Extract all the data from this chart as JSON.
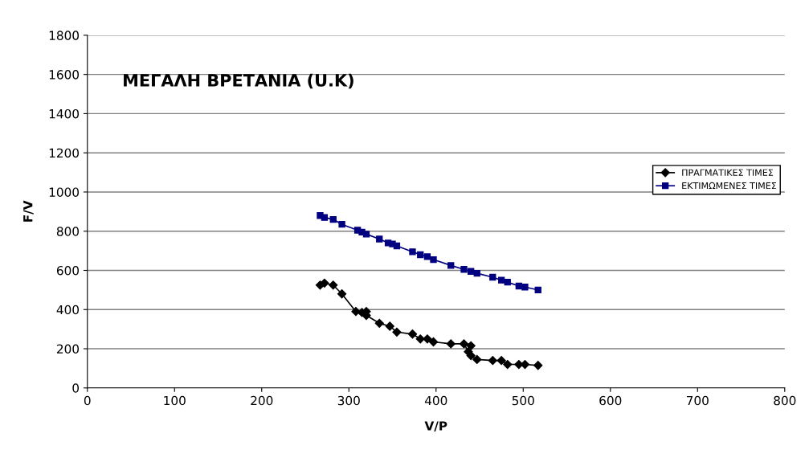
{
  "chart_data": {
    "type": "line",
    "title": "ΜΕΓΑΛΗ ΒΡΕΤΑΝΙΑ (U.K)",
    "xlabel": "V/P",
    "ylabel": "F/V",
    "xlim": [
      0,
      800
    ],
    "xticks": [
      0,
      100,
      200,
      300,
      400,
      500,
      600,
      700,
      800
    ],
    "ylim": [
      0,
      1800
    ],
    "yticks": [
      0,
      200,
      400,
      600,
      800,
      1000,
      1200,
      1400,
      1600,
      1800
    ],
    "grid": "y",
    "legend": "right",
    "series": [
      {
        "name": "ΠΡΑΓΜΑΤΙΚΕΣ ΤΙΜΕΣ",
        "color": "#000000",
        "marker": "diamond",
        "x": [
          267,
          272,
          282,
          292,
          308,
          315,
          320,
          320,
          335,
          347,
          355,
          373,
          382,
          390,
          397,
          417,
          432,
          437,
          440,
          440,
          447,
          465,
          475,
          482,
          495,
          502,
          517
        ],
        "values": [
          525,
          535,
          525,
          480,
          390,
          385,
          390,
          370,
          330,
          315,
          285,
          275,
          250,
          250,
          235,
          225,
          225,
          185,
          215,
          165,
          145,
          140,
          140,
          120,
          120,
          120,
          115
        ]
      },
      {
        "name": "ΕΚΤΙΜΩΜΕΝΕΣ ΤΙΜΕΣ",
        "color": "#000080",
        "marker": "square",
        "x": [
          267,
          272,
          282,
          292,
          310,
          315,
          320,
          335,
          345,
          350,
          355,
          373,
          382,
          390,
          397,
          417,
          432,
          440,
          447,
          465,
          475,
          482,
          495,
          502,
          517
        ],
        "values": [
          880,
          870,
          860,
          835,
          805,
          795,
          785,
          760,
          740,
          735,
          725,
          695,
          680,
          670,
          655,
          625,
          605,
          595,
          585,
          565,
          550,
          540,
          520,
          515,
          500
        ]
      }
    ]
  }
}
